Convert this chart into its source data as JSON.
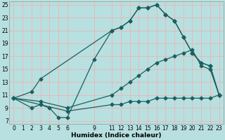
{
  "title": "",
  "xlabel": "Humidex (Indice chaleur)",
  "bg_color": "#b8e0e0",
  "grid_color": "#e8b8b8",
  "line_color": "#1a6060",
  "xlim": [
    -0.5,
    23.5
  ],
  "ylim": [
    6.5,
    25.5
  ],
  "xtick_vals": [
    0,
    1,
    2,
    3,
    4,
    5,
    6,
    9,
    11,
    12,
    13,
    14,
    15,
    16,
    17,
    18,
    19,
    20,
    21,
    22,
    23
  ],
  "ytick_vals": [
    7,
    9,
    11,
    13,
    15,
    17,
    19,
    21,
    23,
    25
  ],
  "line1_x": [
    0,
    2,
    3,
    11,
    12,
    13,
    14,
    15,
    16,
    17,
    18,
    19,
    20,
    21,
    22,
    23
  ],
  "line1_y": [
    10.5,
    11.5,
    13.5,
    21.0,
    21.5,
    22.5,
    24.5,
    24.5,
    25.0,
    23.5,
    22.5,
    20.0,
    17.5,
    16.0,
    15.5,
    11.0
  ],
  "line2_x": [
    0,
    2,
    3,
    4,
    5,
    6,
    9,
    11,
    12,
    13,
    14,
    15,
    16,
    17,
    18,
    19,
    20,
    21,
    22,
    23
  ],
  "line2_y": [
    10.5,
    9.0,
    9.5,
    9.0,
    7.5,
    7.5,
    16.5,
    21.0,
    21.5,
    22.5,
    24.5,
    24.5,
    25.0,
    23.5,
    22.5,
    20.0,
    17.5,
    16.0,
    15.5,
    11.0
  ],
  "line3_x": [
    0,
    3,
    6,
    11,
    12,
    13,
    14,
    15,
    16,
    17,
    18,
    19,
    20,
    21,
    22,
    23
  ],
  "line3_y": [
    10.5,
    10.0,
    9.0,
    11.0,
    12.0,
    13.0,
    14.0,
    15.0,
    16.0,
    16.5,
    17.0,
    17.5,
    18.0,
    15.5,
    15.0,
    11.0
  ],
  "line4_x": [
    0,
    3,
    6,
    11,
    12,
    13,
    14,
    15,
    16,
    17,
    18,
    19,
    20,
    21,
    22,
    23
  ],
  "line4_y": [
    10.5,
    9.5,
    8.5,
    9.5,
    9.5,
    10.0,
    10.0,
    10.0,
    10.5,
    10.5,
    10.5,
    10.5,
    10.5,
    10.5,
    10.5,
    11.0
  ]
}
